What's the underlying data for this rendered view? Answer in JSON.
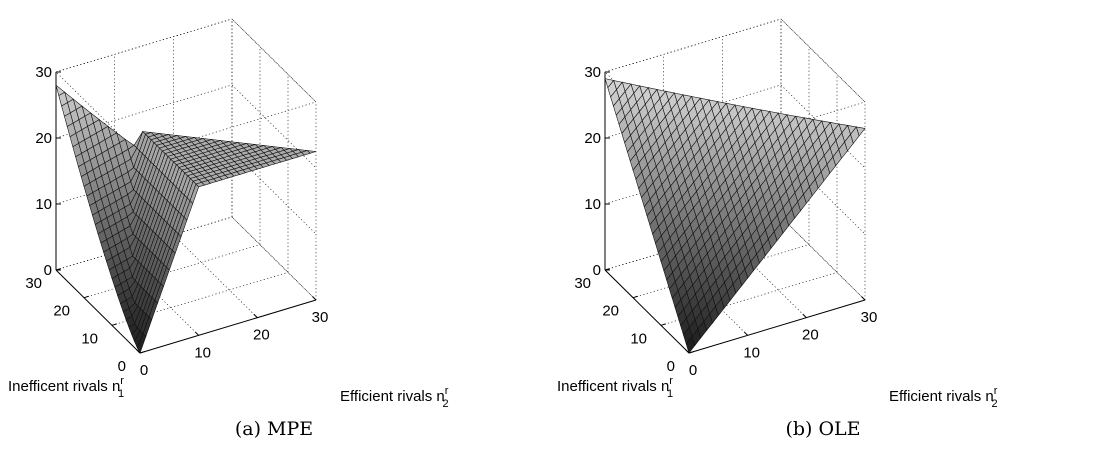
{
  "chart_data": [
    {
      "type": "surface",
      "caption": "(a) MPE",
      "xlabel": "Efficient rivals n",
      "xlabel_sup": "r",
      "xlabel_sub": "2",
      "ylabel": "Inefficent rivals n",
      "ylabel_sup": "r",
      "ylabel_sub": "1",
      "zlabel": "",
      "xlim": [
        0,
        30
      ],
      "ylim": [
        0,
        30
      ],
      "zlim": [
        0,
        30
      ],
      "xticks": [
        "0",
        "10",
        "20",
        "30"
      ],
      "yticks": [
        "0",
        "10",
        "20",
        "30"
      ],
      "zticks": [
        "0",
        "10",
        "20",
        "30"
      ],
      "domain": "n1 + n2 <= 30",
      "grid_steps": 30,
      "grid": true,
      "surface_samples": [
        {
          "n1": 0,
          "n2": 0,
          "z": 0
        },
        {
          "n1": 0,
          "n2": 10,
          "z": 22.5
        },
        {
          "n1": 0,
          "n2": 30,
          "z": 22.5
        },
        {
          "n1": 10,
          "n2": 10,
          "z": 22.5
        },
        {
          "n1": 10,
          "n2": 0,
          "z": 5
        },
        {
          "n1": 20,
          "n2": 0,
          "z": 14
        },
        {
          "n1": 30,
          "n2": 0,
          "z": 28
        }
      ]
    },
    {
      "type": "surface",
      "caption": "(b) OLE",
      "xlabel": "Efficient rivals n",
      "xlabel_sup": "r",
      "xlabel_sub": "2",
      "ylabel": "Inefficent rivals n",
      "ylabel_sup": "r",
      "ylabel_sub": "1",
      "zlabel": "",
      "xlim": [
        0,
        30
      ],
      "ylim": [
        0,
        30
      ],
      "zlim": [
        0,
        30
      ],
      "xticks": [
        "0",
        "10",
        "20",
        "30"
      ],
      "yticks": [
        "0",
        "10",
        "20",
        "30"
      ],
      "zticks": [
        "0",
        "10",
        "20",
        "30"
      ],
      "domain": "n1 + n2 <= 30",
      "grid_steps": 30,
      "grid": true,
      "surface_samples": [
        {
          "n1": 0,
          "n2": 0,
          "z": 0
        },
        {
          "n1": 0,
          "n2": 30,
          "z": 26
        },
        {
          "n1": 30,
          "n2": 0,
          "z": 29
        },
        {
          "n1": 15,
          "n2": 15,
          "z": 27.5
        }
      ]
    }
  ]
}
